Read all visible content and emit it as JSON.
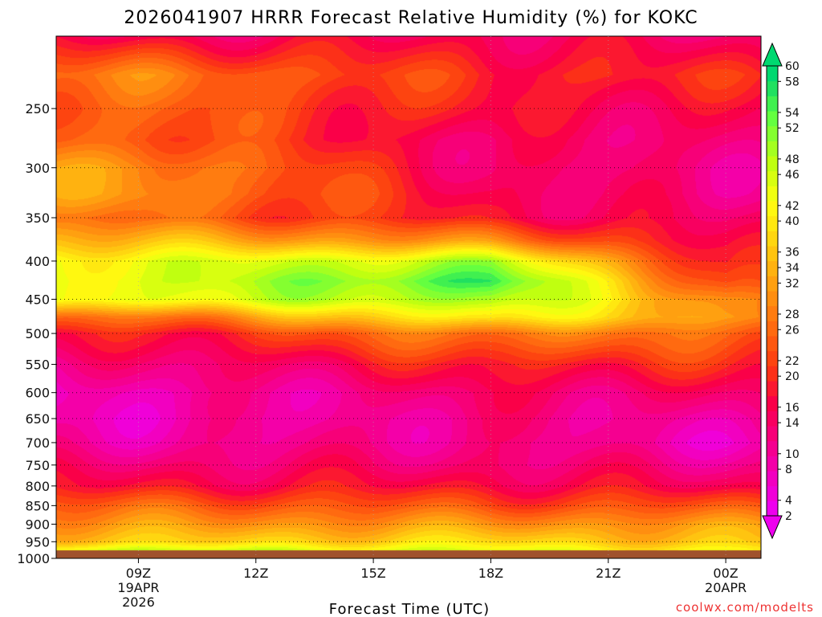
{
  "chart_data": {
    "type": "heatmap",
    "title": "2026041907 HRRR Forecast Relative Humidity (%) for KOKC",
    "xlabel": "Forecast Time (UTC)",
    "ylabel": "",
    "credit": "coolwx.com/modelts",
    "x_ticks": [
      {
        "hours": 9,
        "lines": [
          "09Z",
          "19APR",
          "2026"
        ]
      },
      {
        "hours": 12,
        "lines": [
          "12Z"
        ]
      },
      {
        "hours": 15,
        "lines": [
          "15Z"
        ]
      },
      {
        "hours": 18,
        "lines": [
          "18Z"
        ]
      },
      {
        "hours": 21,
        "lines": [
          "21Z"
        ]
      },
      {
        "hours": 24,
        "lines": [
          "00Z",
          "20APR"
        ]
      }
    ],
    "xlim": [
      6.9,
      24.9
    ],
    "y_pressure_ticks": [
      250,
      300,
      350,
      400,
      450,
      500,
      550,
      600,
      650,
      700,
      750,
      800,
      850,
      900,
      950,
      1000
    ],
    "ylim_hpa": [
      200,
      1000
    ],
    "y_axis_scale": "log (pressure)",
    "ground_below_hpa": 975,
    "colorbar_ticks": [
      60,
      58,
      54,
      52,
      48,
      46,
      42,
      40,
      36,
      34,
      32,
      28,
      26,
      22,
      20,
      16,
      14,
      10,
      8,
      4,
      2
    ],
    "colorbar_levels": [
      2,
      4,
      6,
      8,
      10,
      12,
      14,
      16,
      18,
      20,
      22,
      24,
      26,
      28,
      30,
      32,
      34,
      36,
      38,
      40,
      42,
      44,
      46,
      48,
      50,
      52,
      54,
      56,
      58,
      60
    ],
    "colorbar_colors": [
      "#ee00ee",
      "#f000d8",
      "#f200c0",
      "#f400a8",
      "#f50090",
      "#f70078",
      "#f80060",
      "#fa0048",
      "#fb1830",
      "#fc3018",
      "#fd4410",
      "#fe5810",
      "#ff6a10",
      "#ff7c10",
      "#ff8e10",
      "#ffa010",
      "#ffb210",
      "#ffc410",
      "#ffd610",
      "#ffe810",
      "#fff810",
      "#f0ff10",
      "#d8ff10",
      "#c0ff10",
      "#a4ff20",
      "#84ff30",
      "#64ff40",
      "#40f050",
      "#20e060",
      "#00d870"
    ],
    "grid": true,
    "rh_field_profile": {
      "pressure_hpa": [
        200,
        225,
        250,
        275,
        300,
        325,
        350,
        375,
        400,
        425,
        450,
        475,
        500,
        550,
        600,
        650,
        700,
        750,
        800,
        850,
        900,
        950,
        975
      ],
      "rh_pct_at_09Z": [
        14,
        27,
        24,
        24,
        30,
        30,
        25,
        34,
        43,
        44,
        43,
        25,
        16,
        10,
        6,
        6,
        8,
        12,
        16,
        24,
        30,
        36,
        46
      ],
      "rh_pct_at_18Z": [
        14,
        18,
        16,
        12,
        12,
        14,
        16,
        28,
        48,
        56,
        50,
        42,
        28,
        18,
        12,
        10,
        10,
        12,
        16,
        22,
        30,
        38,
        44
      ],
      "rh_pct_at_00Z": [
        12,
        18,
        14,
        12,
        10,
        10,
        12,
        14,
        16,
        20,
        28,
        30,
        24,
        18,
        12,
        8,
        6,
        10,
        14,
        22,
        30,
        34,
        40
      ]
    }
  }
}
